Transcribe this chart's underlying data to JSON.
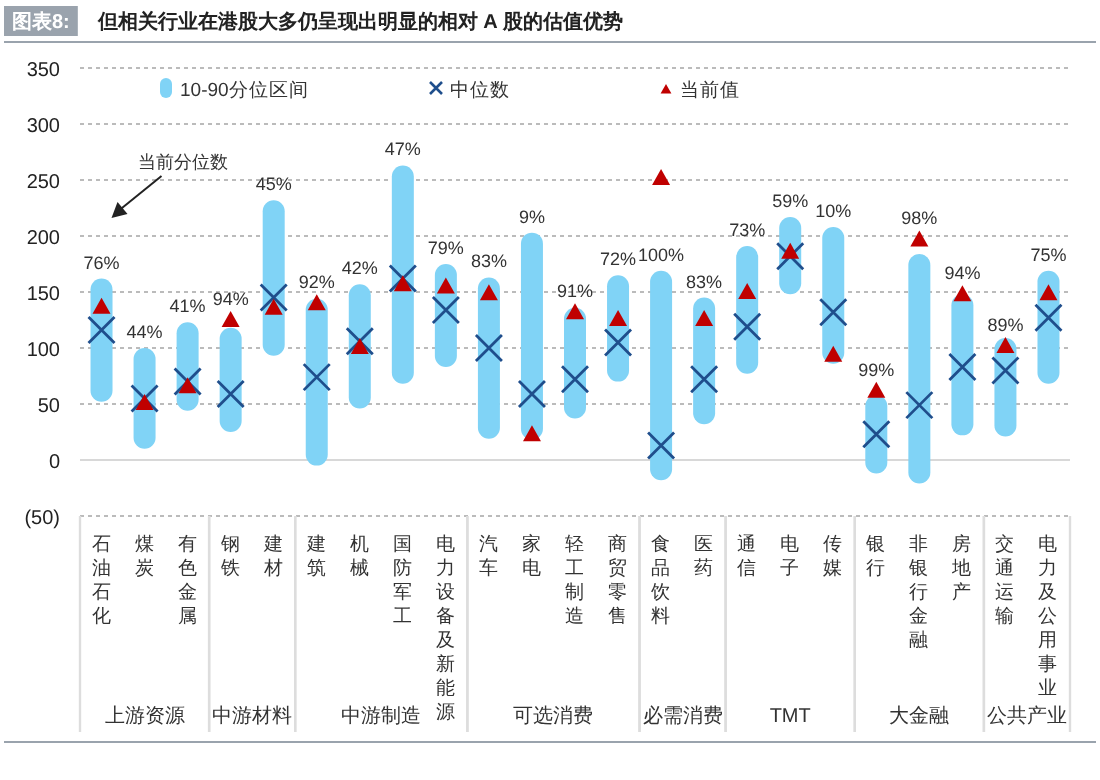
{
  "chart_data": {
    "type": "bar",
    "title": "图表8:",
    "subtitle": "但相关行业在港股大多仍呈现出明显的相对 A 股的估值优势",
    "categories": [
      "石油石化",
      "煤炭",
      "有色金属",
      "钢铁",
      "建材",
      "建筑",
      "机械",
      "国防军工",
      "电力设备及新能源",
      "汽车",
      "家电",
      "轻工制造",
      "商贸零售",
      "食品饮料",
      "医药",
      "通信",
      "电子",
      "传媒",
      "银行",
      "非银行金融",
      "房地产",
      "交通运输",
      "电力及公用事业"
    ],
    "series": [
      {
        "name": "10-90分位区间",
        "color": "#80d3f6",
        "base": [
          52,
          10,
          44,
          25,
          93,
          -5,
          46,
          68,
          83,
          19,
          18,
          37,
          70,
          -18,
          32,
          77,
          148,
          86,
          -12,
          -21,
          22,
          21,
          68
        ],
        "values": [
          110,
          90,
          79,
          93,
          139,
          149,
          111,
          195,
          92,
          144,
          185,
          99,
          95,
          187,
          113,
          114,
          69,
          122,
          70,
          205,
          126,
          88,
          101
        ]
      },
      {
        "name": "中位数",
        "type": "scatter",
        "marker": "cross",
        "color": "#1f4e8c",
        "x": [
          "石油石化",
          "煤炭",
          "有色金属",
          "钢铁",
          "建材",
          "建筑",
          "机械",
          "国防军工",
          "电力设备及新能源",
          "汽车",
          "家电",
          "轻工制造",
          "商贸零售",
          "食品饮料",
          "医药",
          "通信",
          "电子",
          "传媒",
          "银行",
          "非银行金融",
          "房地产",
          "交通运输",
          "电力及公用事业"
        ],
        "values": [
          116,
          55,
          70,
          59,
          145,
          74,
          106,
          162,
          134,
          100,
          59,
          72,
          105,
          13,
          72,
          119,
          182,
          132,
          23,
          49,
          83,
          80,
          127
        ]
      },
      {
        "name": "当前值",
        "type": "scatter",
        "marker": "triangle",
        "color": "#c00000",
        "x": [
          "石油石化",
          "煤炭",
          "有色金属",
          "钢铁",
          "建材",
          "建筑",
          "机械",
          "国防军工",
          "电力设备及新能源",
          "汽车",
          "家电",
          "轻工制造",
          "商贸零售",
          "食品饮料",
          "医药",
          "通信",
          "电子",
          "传媒",
          "银行",
          "非银行金融",
          "房地产",
          "交通运输",
          "电力及公用事业"
        ],
        "values": [
          136,
          50,
          65,
          124,
          135,
          139,
          100,
          156,
          154,
          148,
          22,
          131,
          125,
          251,
          125,
          149,
          185,
          93,
          61,
          196,
          147,
          101,
          148
        ]
      }
    ],
    "ylim": [
      -50,
      350
    ],
    "yticks": [
      {
        "value": -50,
        "label": "(50)"
      },
      0,
      50,
      100,
      150,
      200,
      250,
      300,
      350
    ],
    "grid": "y",
    "legend": "top",
    "annotations": [
      "当前分位数",
      {
        "text": "76%",
        "x": "石油石化",
        "y": 162
      },
      {
        "text": "44%",
        "x": "煤炭",
        "y": 100
      },
      {
        "text": "41%",
        "x": "有色金属",
        "y": 123
      },
      {
        "text": "94%",
        "x": "钢铁",
        "y": 118
      },
      {
        "text": "45%",
        "x": "建材",
        "y": 232
      },
      {
        "text": "92%",
        "x": "建筑",
        "y": 144
      },
      {
        "text": "42%",
        "x": "机械",
        "y": 157
      },
      {
        "text": "47%",
        "x": "国防军工",
        "y": 263
      },
      {
        "text": "79%",
        "x": "电力设备及新能源",
        "y": 175
      },
      {
        "text": "83%",
        "x": "汽车",
        "y": 163
      },
      {
        "text": "9%",
        "x": "家电",
        "y": 203
      },
      {
        "text": "91%",
        "x": "轻工制造",
        "y": 136
      },
      {
        "text": "72%",
        "x": "商贸零售",
        "y": 165
      },
      {
        "text": "100%",
        "x": "食品饮料",
        "y": 169
      },
      {
        "text": "83%",
        "x": "医药",
        "y": 145
      },
      {
        "text": "73%",
        "x": "通信",
        "y": 191
      },
      {
        "text": "59%",
        "x": "电子",
        "y": 217
      },
      {
        "text": "10%",
        "x": "传媒",
        "y": 208
      },
      {
        "text": "99%",
        "x": "银行",
        "y": 58
      },
      {
        "text": "98%",
        "x": "非银行金融",
        "y": 184
      },
      {
        "text": "94%",
        "x": "房地产",
        "y": 148
      },
      {
        "text": "89%",
        "x": "交通运输",
        "y": 109
      },
      {
        "text": "75%",
        "x": "电力及公用事业",
        "y": 169
      },
      "上游资源",
      "中游材料",
      "中游制造",
      "可选消费",
      "必需消费",
      "TMT",
      "大金融",
      "公共产业"
    ]
  }
}
